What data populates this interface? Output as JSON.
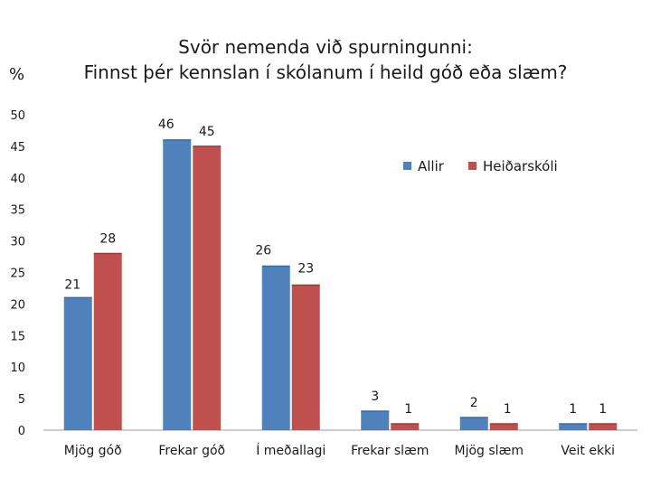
{
  "chart_data": {
    "type": "bar",
    "title_lines": [
      "Svör nemenda við spurningunni:",
      "Finnst þér kennslan í skólanum í heild góð eða slæm?"
    ],
    "ylabel": "%",
    "xlabel": "",
    "ylim": [
      0,
      50
    ],
    "yticks": [
      0,
      5,
      10,
      15,
      20,
      25,
      30,
      35,
      40,
      45,
      50
    ],
    "grid": false,
    "legend_position": "top-right",
    "categories": [
      "Mjög góð",
      "Frekar góð",
      "Í meðallagi",
      "Frekar slæm",
      "Mjög slæm",
      "Veit ekki"
    ],
    "series": [
      {
        "name": "Allir",
        "color": "#4F81BD",
        "values": [
          21,
          46,
          26,
          3,
          2,
          1
        ]
      },
      {
        "name": "Heiðarskóli",
        "color": "#C0504D",
        "values": [
          28,
          45,
          23,
          1,
          1,
          1
        ]
      }
    ]
  }
}
